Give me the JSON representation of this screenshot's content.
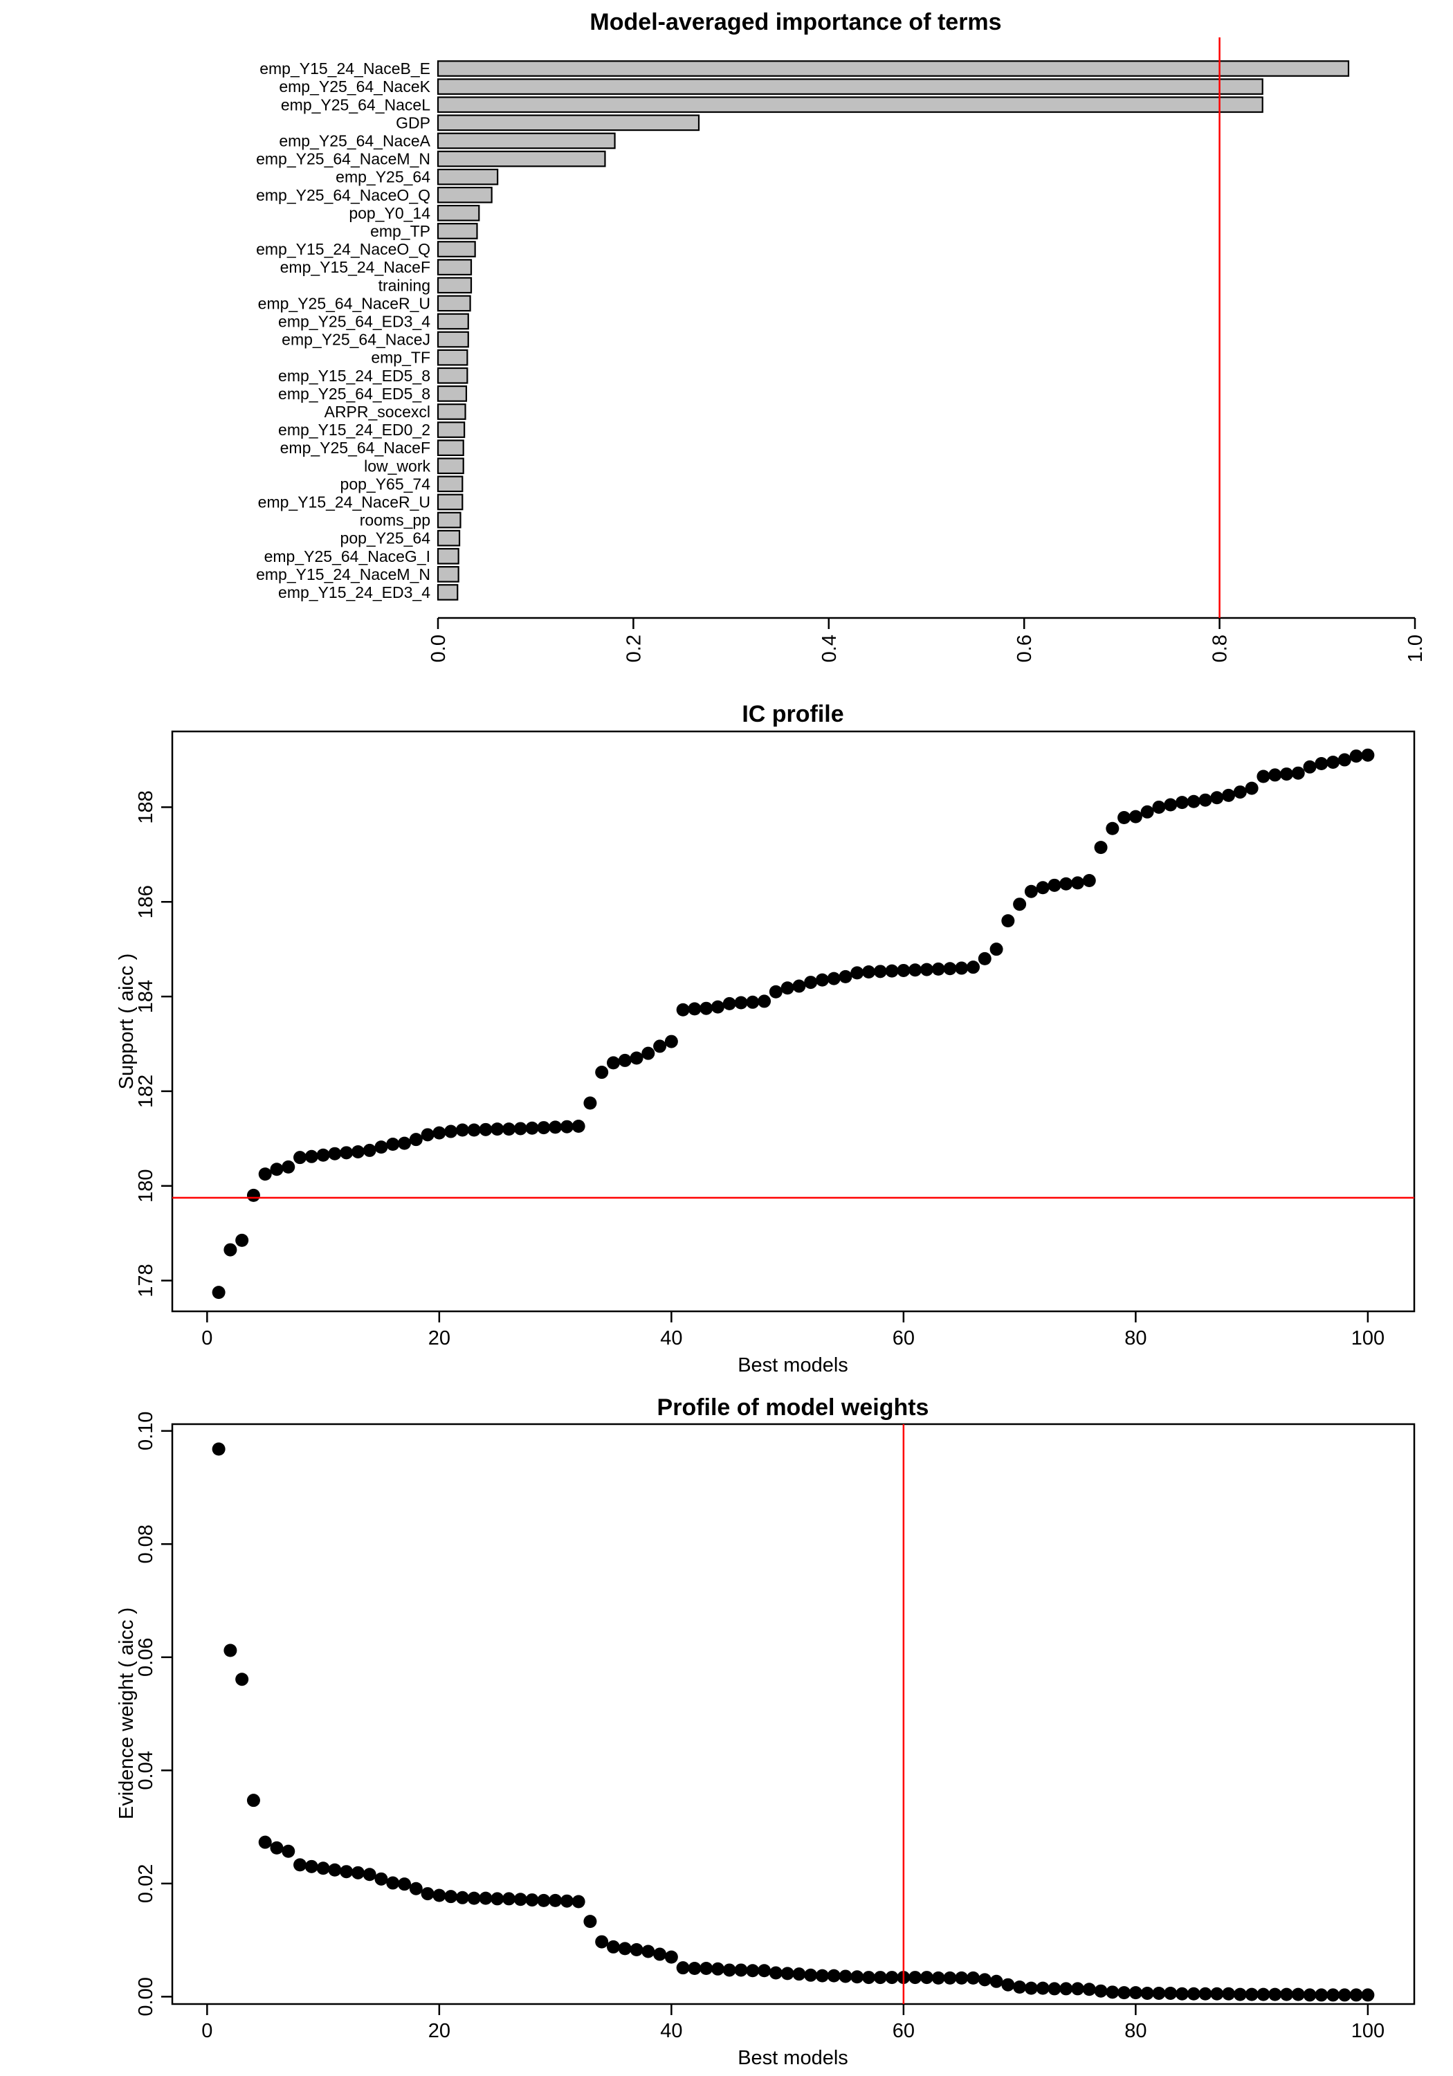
{
  "colors": {
    "bar_fill": "#c0c0c0",
    "bar_stroke": "#000000",
    "reference_line": "#ff0000",
    "point": "#000000",
    "background": "#ffffff"
  },
  "chart_data": [
    {
      "type": "bar",
      "orientation": "horizontal",
      "title": "Model-averaged importance of terms",
      "categories": [
        "emp_Y15_24_NaceB_E",
        "emp_Y25_64_NaceK",
        "emp_Y25_64_NaceL",
        "GDP",
        "emp_Y25_64_NaceA",
        "emp_Y25_64_NaceM_N",
        "emp_Y25_64",
        "emp_Y25_64_NaceO_Q",
        "pop_Y0_14",
        "emp_TP",
        "emp_Y15_24_NaceO_Q",
        "emp_Y15_24_NaceF",
        "training",
        "emp_Y25_64_NaceR_U",
        "emp_Y25_64_ED3_4",
        "emp_Y25_64_NaceJ",
        "emp_TF",
        "emp_Y15_24_ED5_8",
        "emp_Y25_64_ED5_8",
        "ARPR_socexcl",
        "emp_Y15_24_ED0_2",
        "emp_Y25_64_NaceF",
        "low_work",
        "pop_Y65_74",
        "emp_Y15_24_NaceR_U",
        "rooms_pp",
        "pop_Y25_64",
        "emp_Y25_64_NaceG_I",
        "emp_Y15_24_NaceM_N",
        "emp_Y15_24_ED3_4"
      ],
      "values": [
        0.932,
        0.844,
        0.844,
        0.267,
        0.181,
        0.171,
        0.061,
        0.055,
        0.042,
        0.04,
        0.038,
        0.034,
        0.034,
        0.033,
        0.031,
        0.031,
        0.03,
        0.03,
        0.029,
        0.028,
        0.027,
        0.026,
        0.026,
        0.025,
        0.025,
        0.023,
        0.022,
        0.021,
        0.021,
        0.02
      ],
      "xlim": [
        0,
        1.0
      ],
      "xticks": [
        "0.0",
        "0.2",
        "0.4",
        "0.6",
        "0.8",
        "1.0"
      ],
      "reference_line": 0.8,
      "xlabel": "",
      "ylabel": ""
    },
    {
      "type": "scatter",
      "title": "IC profile",
      "xlabel": "Best models",
      "ylabel": "Support ( aicc )",
      "xlim": [
        -3,
        104
      ],
      "ylim": [
        177.35,
        189.6
      ],
      "xticks": [
        "0",
        "20",
        "40",
        "60",
        "80",
        "100"
      ],
      "yticks": [
        "178",
        "180",
        "182",
        "184",
        "186",
        "188"
      ],
      "reference_line": 179.75,
      "x": [
        1,
        2,
        3,
        4,
        5,
        6,
        7,
        8,
        9,
        10,
        11,
        12,
        13,
        14,
        15,
        16,
        17,
        18,
        19,
        20,
        21,
        22,
        23,
        24,
        25,
        26,
        27,
        28,
        29,
        30,
        31,
        32,
        33,
        34,
        35,
        36,
        37,
        38,
        39,
        40,
        41,
        42,
        43,
        44,
        45,
        46,
        47,
        48,
        49,
        50,
        51,
        52,
        53,
        54,
        55,
        56,
        57,
        58,
        59,
        60,
        61,
        62,
        63,
        64,
        65,
        66,
        67,
        68,
        69,
        70,
        71,
        72,
        73,
        74,
        75,
        76,
        77,
        78,
        79,
        80,
        81,
        82,
        83,
        84,
        85,
        86,
        87,
        88,
        89,
        90,
        91,
        92,
        93,
        94,
        95,
        96,
        97,
        98,
        99,
        100
      ],
      "y": [
        177.75,
        178.65,
        178.85,
        179.8,
        180.25,
        180.35,
        180.4,
        180.6,
        180.62,
        180.65,
        180.68,
        180.7,
        180.72,
        180.75,
        180.82,
        180.88,
        180.9,
        180.98,
        181.08,
        181.12,
        181.15,
        181.18,
        181.18,
        181.19,
        181.2,
        181.2,
        181.21,
        181.22,
        181.23,
        181.24,
        181.25,
        181.26,
        181.75,
        182.4,
        182.6,
        182.65,
        182.7,
        182.8,
        182.95,
        183.05,
        183.72,
        183.74,
        183.75,
        183.78,
        183.85,
        183.87,
        183.88,
        183.9,
        184.1,
        184.18,
        184.22,
        184.3,
        184.35,
        184.38,
        184.42,
        184.5,
        184.52,
        184.53,
        184.54,
        184.55,
        184.56,
        184.57,
        184.58,
        184.59,
        184.6,
        184.62,
        184.8,
        185.0,
        185.6,
        185.95,
        186.22,
        186.3,
        186.35,
        186.38,
        186.4,
        186.45,
        187.15,
        187.55,
        187.78,
        187.8,
        187.9,
        188.0,
        188.05,
        188.1,
        188.12,
        188.15,
        188.2,
        188.25,
        188.32,
        188.4,
        188.65,
        188.68,
        188.7,
        188.72,
        188.85,
        188.92,
        188.95,
        189.0,
        189.08,
        189.1
      ]
    },
    {
      "type": "scatter",
      "title": "Profile of model weights",
      "xlabel": "Best models",
      "ylabel": "Evidence weight ( aicc )",
      "xlim": [
        -3,
        104
      ],
      "ylim": [
        -0.0013,
        0.1012
      ],
      "xticks": [
        "0",
        "20",
        "40",
        "60",
        "80",
        "100"
      ],
      "yticks": [
        "0.00",
        "0.02",
        "0.04",
        "0.06",
        "0.08",
        "0.10"
      ],
      "reference_line": 60,
      "x": [
        1,
        2,
        3,
        4,
        5,
        6,
        7,
        8,
        9,
        10,
        11,
        12,
        13,
        14,
        15,
        16,
        17,
        18,
        19,
        20,
        21,
        22,
        23,
        24,
        25,
        26,
        27,
        28,
        29,
        30,
        31,
        32,
        33,
        34,
        35,
        36,
        37,
        38,
        39,
        40,
        41,
        42,
        43,
        44,
        45,
        46,
        47,
        48,
        49,
        50,
        51,
        52,
        53,
        54,
        55,
        56,
        57,
        58,
        59,
        60,
        61,
        62,
        63,
        64,
        65,
        66,
        67,
        68,
        69,
        70,
        71,
        72,
        73,
        74,
        75,
        76,
        77,
        78,
        79,
        80,
        81,
        82,
        83,
        84,
        85,
        86,
        87,
        88,
        89,
        90,
        91,
        92,
        93,
        94,
        95,
        96,
        97,
        98,
        99,
        100
      ],
      "y": [
        0.0968,
        0.0612,
        0.0561,
        0.0347,
        0.0273,
        0.0263,
        0.0257,
        0.0233,
        0.023,
        0.0227,
        0.0224,
        0.0221,
        0.0219,
        0.0216,
        0.0208,
        0.0201,
        0.0199,
        0.0191,
        0.0182,
        0.0179,
        0.0177,
        0.0175,
        0.0174,
        0.0174,
        0.0173,
        0.0173,
        0.0172,
        0.0171,
        0.017,
        0.017,
        0.0169,
        0.0168,
        0.0133,
        0.0097,
        0.0088,
        0.0085,
        0.0083,
        0.008,
        0.0075,
        0.007,
        0.0051,
        0.005,
        0.005,
        0.0049,
        0.0047,
        0.0047,
        0.0046,
        0.0046,
        0.0042,
        0.0041,
        0.004,
        0.0038,
        0.0037,
        0.0037,
        0.0036,
        0.0035,
        0.0034,
        0.0034,
        0.0034,
        0.0034,
        0.0034,
        0.0034,
        0.0033,
        0.0033,
        0.0033,
        0.0033,
        0.003,
        0.0027,
        0.0021,
        0.0017,
        0.0015,
        0.0015,
        0.0014,
        0.0014,
        0.0014,
        0.0013,
        0.001,
        0.0008,
        0.0007,
        0.0007,
        0.0006,
        0.0006,
        0.0006,
        0.0005,
        0.0005,
        0.0005,
        0.0005,
        0.0005,
        0.0004,
        0.0004,
        0.0004,
        0.0004,
        0.0004,
        0.0004,
        0.0003,
        0.0003,
        0.0003,
        0.0003,
        0.0003,
        0.0003
      ]
    }
  ]
}
